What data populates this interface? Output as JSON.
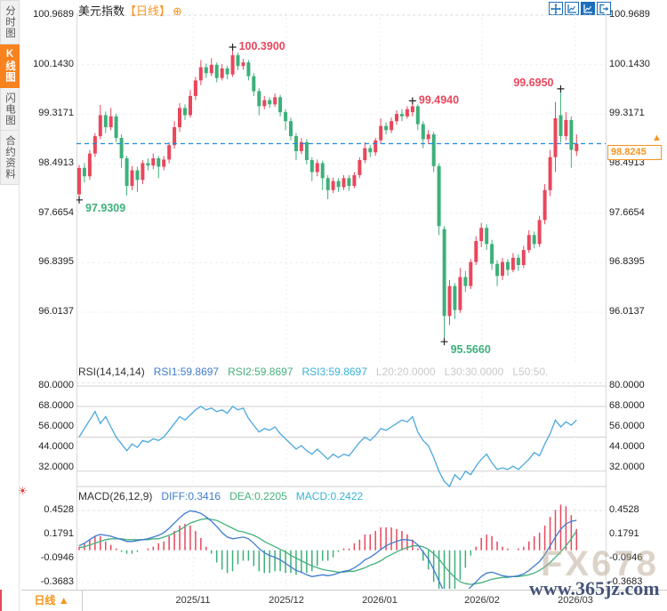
{
  "app": {
    "accent_orange": "#f7941e",
    "up_red": "#e8475c",
    "down_green": "#3db07a",
    "toolbar_blue": "#1b6fba",
    "line_blue": "#3f7bd0",
    "line_green": "#45b07c",
    "line_cyan": "#38b2d8",
    "muted_gray": "#c9c9c9"
  },
  "sidebar": {
    "tabs": [
      {
        "label": "分时图",
        "active": false
      },
      {
        "label": "K线图",
        "active": true
      },
      {
        "label": "闪电图",
        "active": false
      },
      {
        "label": "合约资料",
        "active": false
      }
    ]
  },
  "header": {
    "symbol": "美元指数",
    "period": "【日线】",
    "gear": "⊕"
  },
  "toolbar": {
    "icons": [
      "move-tool",
      "axis-zoom",
      "axis-zoom-active",
      "exit-chart"
    ]
  },
  "price_badge": {
    "value": "98.8245",
    "arrow": "▲"
  },
  "bottom": {
    "period_label": "日线",
    "arrow": "▲"
  },
  "watermark": {
    "line1": "FX678",
    "line2": "www.365jz.com"
  },
  "chart_data": [
    {
      "type": "candlestick",
      "title": "美元指数 日线",
      "ylim": [
        95.566,
        100.9689
      ],
      "yticks": [
        100.9689,
        100.143,
        99.3171,
        98.4913,
        97.6654,
        96.8395,
        96.0137
      ],
      "ytick_labels": [
        "100.9689",
        "100.1430",
        "99.3171",
        "98.4913",
        "97.6654",
        "96.8395",
        "96.0137"
      ],
      "x_dates": [
        "2025/11",
        "2025/12",
        "2026/01",
        "2026/02",
        "2026/03"
      ],
      "current_price": 98.8245,
      "annotations": [
        {
          "text": "100.3900",
          "value": 100.39,
          "index": 29,
          "kind": "high",
          "side": "right"
        },
        {
          "text": "99.4940",
          "value": 99.494,
          "index": 63,
          "kind": "high",
          "side": "right"
        },
        {
          "text": "99.6950",
          "value": 99.695,
          "index": 91,
          "kind": "high",
          "side": "left"
        },
        {
          "text": "97.9309",
          "value": 97.9309,
          "index": 0,
          "kind": "low",
          "side": "right"
        },
        {
          "text": "95.5660",
          "value": 95.566,
          "index": 69,
          "kind": "low",
          "side": "right"
        }
      ],
      "ohlc": [
        [
          97.98,
          98.47,
          97.931,
          98.42
        ],
        [
          98.42,
          98.5,
          98.18,
          98.28
        ],
        [
          98.28,
          98.72,
          98.22,
          98.66
        ],
        [
          98.66,
          99.0,
          98.6,
          98.95
        ],
        [
          98.95,
          99.47,
          98.9,
          99.3
        ],
        [
          99.3,
          99.36,
          99.0,
          99.1
        ],
        [
          99.1,
          99.42,
          99.05,
          99.28
        ],
        [
          99.28,
          99.33,
          98.85,
          98.92
        ],
        [
          98.92,
          98.98,
          98.42,
          98.58
        ],
        [
          98.58,
          98.62,
          97.96,
          98.12
        ],
        [
          98.12,
          98.45,
          98.05,
          98.38
        ],
        [
          98.38,
          98.44,
          98.02,
          98.22
        ],
        [
          98.22,
          98.55,
          98.15,
          98.5
        ],
        [
          98.5,
          98.58,
          98.38,
          98.46
        ],
        [
          98.46,
          98.66,
          98.4,
          98.58
        ],
        [
          98.58,
          98.62,
          98.25,
          98.44
        ],
        [
          98.44,
          98.62,
          98.38,
          98.56
        ],
        [
          98.56,
          98.85,
          98.5,
          98.8
        ],
        [
          98.8,
          99.2,
          98.74,
          99.1
        ],
        [
          99.1,
          99.5,
          99.02,
          99.42
        ],
        [
          99.42,
          99.48,
          99.22,
          99.3
        ],
        [
          99.3,
          99.72,
          99.26,
          99.62
        ],
        [
          99.62,
          99.94,
          99.55,
          99.88
        ],
        [
          99.88,
          100.22,
          99.8,
          100.1
        ],
        [
          100.1,
          100.16,
          99.92,
          100.0
        ],
        [
          100.0,
          100.25,
          99.95,
          100.14
        ],
        [
          100.14,
          100.18,
          99.85,
          99.92
        ],
        [
          99.92,
          100.15,
          99.88,
          100.08
        ],
        [
          100.08,
          100.12,
          99.9,
          99.98
        ],
        [
          99.98,
          100.39,
          99.94,
          100.3
        ],
        [
          100.3,
          100.34,
          100.05,
          100.12
        ],
        [
          100.12,
          100.24,
          100.06,
          100.18
        ],
        [
          100.18,
          100.22,
          99.88,
          99.95
        ],
        [
          99.95,
          100.0,
          99.62,
          99.7
        ],
        [
          99.7,
          99.75,
          99.3,
          99.45
        ],
        [
          99.45,
          99.62,
          99.4,
          99.55
        ],
        [
          99.55,
          99.6,
          99.42,
          99.48
        ],
        [
          99.48,
          99.66,
          99.44,
          99.6
        ],
        [
          99.6,
          99.64,
          99.28,
          99.35
        ],
        [
          99.35,
          99.4,
          99.05,
          99.2
        ],
        [
          99.2,
          99.26,
          98.88,
          98.95
        ],
        [
          98.95,
          99.0,
          98.55,
          98.7
        ],
        [
          98.7,
          98.92,
          98.65,
          98.85
        ],
        [
          98.85,
          98.9,
          98.48,
          98.55
        ],
        [
          98.55,
          98.6,
          98.2,
          98.35
        ],
        [
          98.35,
          98.56,
          98.28,
          98.5
        ],
        [
          98.5,
          98.54,
          98.05,
          98.25
        ],
        [
          98.25,
          98.3,
          97.9,
          98.05
        ],
        [
          98.05,
          98.26,
          98.0,
          98.2
        ],
        [
          98.2,
          98.25,
          98.02,
          98.1
        ],
        [
          98.1,
          98.3,
          98.05,
          98.25
        ],
        [
          98.25,
          98.3,
          98.04,
          98.12
        ],
        [
          98.12,
          98.35,
          98.08,
          98.3
        ],
        [
          98.3,
          98.6,
          98.25,
          98.55
        ],
        [
          98.55,
          98.85,
          98.5,
          98.75
        ],
        [
          98.75,
          98.8,
          98.6,
          98.68
        ],
        [
          98.68,
          98.92,
          98.62,
          98.88
        ],
        [
          98.88,
          99.25,
          98.82,
          99.12
        ],
        [
          99.12,
          99.18,
          98.98,
          99.05
        ],
        [
          99.05,
          99.26,
          99.0,
          99.2
        ],
        [
          99.2,
          99.38,
          99.14,
          99.32
        ],
        [
          99.32,
          99.4,
          99.2,
          99.28
        ],
        [
          99.28,
          99.45,
          99.24,
          99.4
        ],
        [
          99.35,
          99.494,
          99.28,
          99.45
        ],
        [
          99.45,
          99.48,
          99.05,
          99.15
        ],
        [
          99.15,
          99.2,
          98.75,
          98.9
        ],
        [
          98.9,
          99.05,
          98.82,
          98.98
        ],
        [
          98.98,
          99.02,
          98.35,
          98.45
        ],
        [
          98.45,
          98.5,
          97.3,
          97.45
        ],
        [
          97.4,
          97.45,
          95.566,
          95.95
        ],
        [
          95.95,
          96.55,
          95.8,
          96.45
        ],
        [
          96.45,
          96.5,
          95.9,
          96.05
        ],
        [
          96.05,
          96.75,
          96.0,
          96.6
        ],
        [
          96.6,
          96.7,
          96.35,
          96.45
        ],
        [
          96.45,
          96.9,
          96.4,
          96.85
        ],
        [
          96.85,
          97.28,
          96.8,
          97.2
        ],
        [
          97.2,
          97.5,
          97.1,
          97.42
        ],
        [
          97.42,
          97.48,
          97.05,
          97.15
        ],
        [
          97.15,
          97.22,
          96.72,
          96.82
        ],
        [
          96.82,
          96.88,
          96.45,
          96.62
        ],
        [
          96.62,
          96.92,
          96.55,
          96.85
        ],
        [
          96.85,
          96.9,
          96.62,
          96.72
        ],
        [
          96.72,
          97.0,
          96.68,
          96.92
        ],
        [
          96.92,
          96.98,
          96.7,
          96.8
        ],
        [
          96.8,
          97.12,
          96.75,
          97.05
        ],
        [
          97.05,
          97.38,
          97.0,
          97.3
        ],
        [
          97.3,
          97.36,
          97.08,
          97.15
        ],
        [
          97.15,
          97.62,
          97.1,
          97.55
        ],
        [
          97.55,
          98.15,
          97.48,
          98.05
        ],
        [
          98.05,
          98.72,
          97.95,
          98.6
        ],
        [
          98.6,
          99.52,
          98.35,
          99.25
        ],
        [
          99.3,
          99.695,
          98.85,
          98.95
        ],
        [
          98.95,
          99.35,
          98.88,
          99.22
        ],
        [
          99.22,
          99.28,
          98.42,
          98.72
        ],
        [
          98.7,
          98.98,
          98.62,
          98.8245
        ]
      ]
    },
    {
      "type": "line",
      "title": "RSI",
      "legend": [
        {
          "text": "RSI(14,14,14)",
          "color": "#333333"
        },
        {
          "text": "RSI1:59.8697",
          "color": "#3f7bd0"
        },
        {
          "text": "RSI2:59.8697",
          "color": "#45b07c"
        },
        {
          "text": "RSI3:59.8697",
          "color": "#38b2d8"
        },
        {
          "text": "L20:20.0000",
          "color": "#c9c9c9"
        },
        {
          "text": "L30:30.0000",
          "color": "#c9c9c9"
        },
        {
          "text": "L50:50.",
          "color": "#c9c9c9"
        }
      ],
      "ylim": [
        20,
        80
      ],
      "yticks": [
        80,
        68,
        56,
        44,
        32
      ],
      "ytick_labels": [
        "80.0000",
        "68.0000",
        "56.0000",
        "44.0000",
        "32.0000"
      ],
      "ref_lines": [
        80,
        68,
        50,
        30,
        20
      ],
      "series": [
        {
          "name": "RSI1",
          "values": [
            50,
            55,
            60,
            65,
            58,
            62,
            56,
            50,
            46,
            42,
            46,
            44,
            48,
            47,
            49,
            48,
            50,
            54,
            58,
            62,
            60,
            63,
            66,
            68,
            66,
            67,
            65,
            66,
            64,
            68,
            66,
            67,
            61,
            57,
            53,
            55,
            54,
            56,
            52,
            49,
            46,
            43,
            45,
            42,
            40,
            43,
            40,
            37,
            40,
            38,
            40,
            39,
            43,
            47,
            50,
            48,
            51,
            55,
            54,
            56,
            58,
            60,
            59,
            62,
            53,
            48,
            45,
            38,
            30,
            24,
            21,
            28,
            25,
            30,
            28,
            33,
            37,
            40,
            35,
            31,
            32,
            31,
            33,
            31,
            34,
            37,
            41,
            39,
            46,
            52,
            60,
            56,
            59,
            57,
            60
          ]
        }
      ]
    },
    {
      "type": "macd",
      "title": "MACD",
      "legend": [
        {
          "text": "MACD(26,12,9)",
          "color": "#333333"
        },
        {
          "text": "DIFF:0.3416",
          "color": "#3f7bd0"
        },
        {
          "text": "DEA:0.2205",
          "color": "#45b07c"
        },
        {
          "text": "MACD:0.2422",
          "color": "#38b2d8"
        }
      ],
      "yticks": [
        0.4528,
        0.1791,
        -0.0946,
        -0.3683
      ],
      "ytick_labels": [
        "0.4528",
        "0.1791",
        "-0.0946",
        "-0.3683"
      ],
      "diff": [
        0.05,
        0.08,
        0.12,
        0.16,
        0.18,
        0.17,
        0.16,
        0.14,
        0.12,
        0.1,
        0.1,
        0.11,
        0.12,
        0.13,
        0.15,
        0.17,
        0.2,
        0.25,
        0.31,
        0.37,
        0.42,
        0.45,
        0.44,
        0.42,
        0.38,
        0.33,
        0.27,
        0.2,
        0.15,
        0.13,
        0.14,
        0.15,
        0.13,
        0.08,
        0.02,
        -0.03,
        -0.06,
        -0.08,
        -0.11,
        -0.15,
        -0.19,
        -0.23,
        -0.25,
        -0.28,
        -0.3,
        -0.29,
        -0.28,
        -0.29,
        -0.28,
        -0.26,
        -0.24,
        -0.23,
        -0.2,
        -0.16,
        -0.11,
        -0.08,
        -0.04,
        0.01,
        0.05,
        0.08,
        0.1,
        0.12,
        0.12,
        0.11,
        0.06,
        -0.02,
        -0.1,
        -0.22,
        -0.35,
        -0.48,
        -0.55,
        -0.56,
        -0.53,
        -0.48,
        -0.42,
        -0.36,
        -0.3,
        -0.26,
        -0.25,
        -0.27,
        -0.29,
        -0.3,
        -0.3,
        -0.29,
        -0.27,
        -0.23,
        -0.18,
        -0.13,
        -0.05,
        0.05,
        0.15,
        0.24,
        0.3,
        0.33,
        0.3416
      ],
      "dea": [
        0.03,
        0.04,
        0.06,
        0.08,
        0.1,
        0.12,
        0.13,
        0.13,
        0.13,
        0.12,
        0.12,
        0.12,
        0.12,
        0.12,
        0.13,
        0.13,
        0.15,
        0.17,
        0.2,
        0.23,
        0.27,
        0.31,
        0.33,
        0.35,
        0.36,
        0.35,
        0.34,
        0.31,
        0.28,
        0.25,
        0.22,
        0.21,
        0.19,
        0.17,
        0.14,
        0.1,
        0.07,
        0.04,
        0.01,
        -0.02,
        -0.06,
        -0.09,
        -0.12,
        -0.15,
        -0.18,
        -0.2,
        -0.22,
        -0.23,
        -0.24,
        -0.25,
        -0.25,
        -0.24,
        -0.24,
        -0.22,
        -0.2,
        -0.17,
        -0.15,
        -0.12,
        -0.08,
        -0.05,
        -0.02,
        0.01,
        0.03,
        0.05,
        0.05,
        0.04,
        0.01,
        -0.04,
        -0.1,
        -0.18,
        -0.25,
        -0.31,
        -0.36,
        -0.38,
        -0.39,
        -0.38,
        -0.37,
        -0.35,
        -0.33,
        -0.32,
        -0.31,
        -0.31,
        -0.3,
        -0.3,
        -0.29,
        -0.28,
        -0.26,
        -0.23,
        -0.19,
        -0.14,
        -0.08,
        -0.02,
        0.05,
        0.13,
        0.2205
      ]
    }
  ]
}
